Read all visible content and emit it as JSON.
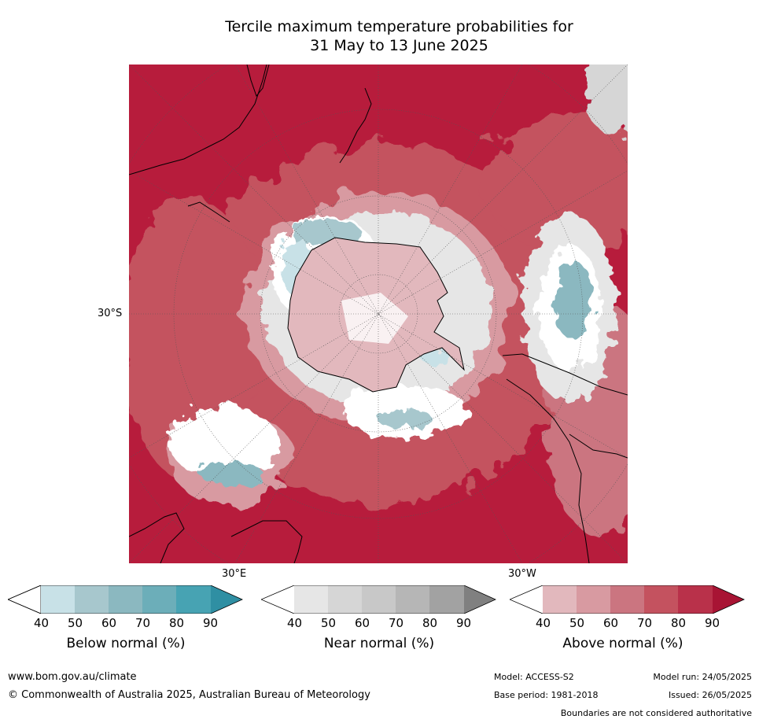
{
  "title": {
    "line1": "Tercile maximum temperature probabilities for",
    "line2": "31 May to 13 June 2025"
  },
  "map": {
    "lat_label": "30°S",
    "lon_labels": {
      "east": "30°E",
      "west": "30°W"
    },
    "colors": {
      "ocean_dominant": "#b71c3c",
      "coast": "#000000"
    }
  },
  "colorbars": [
    {
      "id": "below",
      "title": "Below normal (%)",
      "ticks": [
        "40",
        "50",
        "60",
        "70",
        "80",
        "90"
      ],
      "colors": [
        "#ffffff",
        "#c8e1e7",
        "#a7c7cd",
        "#8bb8c0",
        "#6caeb9",
        "#47a3b3",
        "#2f8fa3"
      ]
    },
    {
      "id": "near",
      "title": "Near normal (%)",
      "ticks": [
        "40",
        "50",
        "60",
        "70",
        "80",
        "90"
      ],
      "colors": [
        "#ffffff",
        "#e6e6e6",
        "#d6d6d6",
        "#c8c8c8",
        "#b6b6b6",
        "#a2a2a2",
        "#808080"
      ]
    },
    {
      "id": "above",
      "title": "Above normal (%)",
      "ticks": [
        "40",
        "50",
        "60",
        "70",
        "80",
        "90"
      ],
      "colors": [
        "#ffffff",
        "#e2b8bd",
        "#d89aa1",
        "#cb7580",
        "#c4525f",
        "#b9314a",
        "#a81434"
      ]
    }
  ],
  "footer": {
    "website": "www.bom.gov.au/climate",
    "copyright": "© Commonwealth of Australia 2025, Australian Bureau of Meteorology",
    "model": "Model: ACCESS-S2",
    "base_period": "Base period: 1981-2018",
    "model_run": "Model run: 24/05/2025",
    "issued": "Issued: 26/05/2025",
    "disclaimer": "Boundaries are not considered authoritative"
  }
}
